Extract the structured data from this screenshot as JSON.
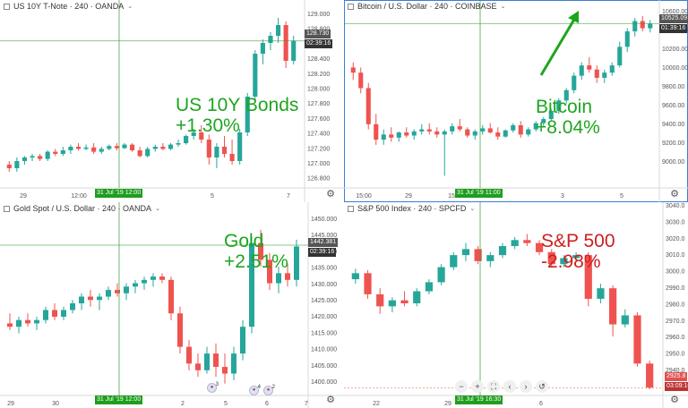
{
  "colors": {
    "up": "#26a69a",
    "down": "#ef5350",
    "green_label": "#1ea51e",
    "red_label": "#cc1f1f",
    "crosshair": "#2f9e2f",
    "active_border": "#3a7fd5"
  },
  "panes": [
    {
      "header": "US 10Y T-Note · 240 · OANDA",
      "big_label": [
        "US 10Y Bonds",
        "+1.30%"
      ],
      "label_color": "green",
      "price_ticks": [
        "129.000",
        "128.800",
        "128.600",
        "128.400",
        "128.200",
        "128.000",
        "127.800",
        "127.600",
        "127.400",
        "127.200",
        "127.000",
        "126.800"
      ],
      "time_ticks": [
        "29",
        "12:00",
        "5",
        "7"
      ],
      "price_tag": "128.730",
      "time_tag": "02:39:16",
      "crosshair_label": "31 Jul '19   12:00"
    },
    {
      "header": "Bitcoin / U.S. Dollar · 240 · COINBASE",
      "big_label": [
        "Bitcoin",
        "+8.04%"
      ],
      "label_color": "green",
      "price_ticks": [
        "10600.00",
        "10400.00",
        "10200.00",
        "10000.00",
        "9800.00",
        "9600.00",
        "9400.00",
        "9200.00",
        "9000.00"
      ],
      "time_ticks": [
        "15:00",
        "29",
        "15",
        "3",
        "5"
      ],
      "price_tag": "10525.09",
      "time_tag": "01:39:16",
      "crosshair_label": "31 Jul '19   11:00"
    },
    {
      "header": "Gold Spot / U.S. Dollar · 240 · OANDA",
      "big_label": [
        "Gold",
        "+2.51%"
      ],
      "label_color": "green",
      "price_ticks": [
        "1450.000",
        "1445.000",
        "1440.000",
        "1435.000",
        "1430.000",
        "1425.000",
        "1420.000",
        "1415.000",
        "1410.000",
        "1405.000",
        "1400.000"
      ],
      "time_ticks": [
        "29",
        "30",
        "2",
        "5",
        "6",
        "7"
      ],
      "price_tag": "1442.381",
      "time_tag": "02:39:16",
      "crosshair_label": "31 Jul '19   12:00",
      "event_flags": [
        "3",
        "4",
        "2"
      ]
    },
    {
      "header": "S&P 500 Index · 240 · SPCFD",
      "big_label": [
        "S&P 500",
        "-2.98%"
      ],
      "label_color": "red",
      "price_ticks": [
        "3040.0",
        "3030.0",
        "3020.0",
        "3010.0",
        "3000.0",
        "2990.0",
        "2980.0",
        "2970.0",
        "2960.0",
        "2950.0",
        "2940.0",
        "2930.0"
      ],
      "time_ticks": [
        "22",
        "29",
        "6"
      ],
      "price_tag": "2925.8",
      "time_tag": "03:09:16",
      "crosshair_label": "31 Jul '19   16:30"
    }
  ],
  "toolbar": [
    "−",
    "+",
    "⛶",
    "‹",
    "›",
    "↺"
  ],
  "chart_data": [
    {
      "type": "candlestick",
      "title": "US 10Y T-Note, 240, OANDA",
      "ylim": [
        126.7,
        129.15
      ],
      "current_price": 128.73,
      "candles": [
        [
          127.0,
          127.05,
          126.9,
          126.95
        ],
        [
          126.95,
          127.1,
          126.9,
          127.05
        ],
        [
          127.05,
          127.12,
          127.0,
          127.1
        ],
        [
          127.1,
          127.15,
          127.05,
          127.12
        ],
        [
          127.12,
          127.15,
          127.05,
          127.08
        ],
        [
          127.08,
          127.2,
          127.05,
          127.18
        ],
        [
          127.18,
          127.22,
          127.12,
          127.15
        ],
        [
          127.15,
          127.25,
          127.12,
          127.2
        ],
        [
          127.2,
          127.28,
          127.15,
          127.25
        ],
        [
          127.25,
          127.3,
          127.2,
          127.22
        ],
        [
          127.22,
          127.28,
          127.2,
          127.24
        ],
        [
          127.24,
          127.3,
          127.15,
          127.18
        ],
        [
          127.18,
          127.25,
          127.15,
          127.22
        ],
        [
          127.22,
          127.28,
          127.2,
          127.26
        ],
        [
          127.26,
          127.3,
          127.2,
          127.23
        ],
        [
          127.23,
          127.3,
          127.22,
          127.28
        ],
        [
          127.28,
          127.3,
          127.18,
          127.2
        ],
        [
          127.2,
          127.25,
          127.1,
          127.12
        ],
        [
          127.12,
          127.25,
          127.1,
          127.22
        ],
        [
          127.22,
          127.28,
          127.18,
          127.25
        ],
        [
          127.25,
          127.3,
          127.2,
          127.22
        ],
        [
          127.22,
          127.3,
          127.2,
          127.28
        ],
        [
          127.28,
          127.35,
          127.25,
          127.3
        ],
        [
          127.3,
          127.42,
          127.28,
          127.4
        ],
        [
          127.4,
          127.5,
          127.35,
          127.45
        ],
        [
          127.45,
          127.55,
          127.3,
          127.35
        ],
        [
          127.35,
          127.42,
          127.0,
          127.1
        ],
        [
          127.1,
          127.3,
          126.95,
          127.25
        ],
        [
          127.25,
          127.4,
          127.1,
          127.15
        ],
        [
          127.15,
          127.35,
          127.0,
          127.05
        ],
        [
          127.05,
          127.5,
          127.0,
          127.45
        ],
        [
          127.45,
          128.0,
          127.4,
          127.95
        ],
        [
          127.95,
          128.6,
          127.9,
          128.55
        ],
        [
          128.55,
          128.75,
          128.4,
          128.7
        ],
        [
          128.7,
          128.85,
          128.6,
          128.8
        ],
        [
          128.8,
          129.05,
          128.7,
          128.95
        ],
        [
          128.95,
          129.0,
          128.35,
          128.45
        ],
        [
          128.45,
          128.8,
          128.4,
          128.73
        ]
      ]
    },
    {
      "type": "candlestick",
      "title": "Bitcoin / U.S. Dollar, 240, COINBASE",
      "ylim": [
        8950,
        10650
      ],
      "current_price": 10525.09,
      "candles": [
        [
          10100,
          10150,
          9980,
          10050
        ],
        [
          10050,
          10100,
          9850,
          9900
        ],
        [
          9900,
          9950,
          9500,
          9550
        ],
        [
          9550,
          9650,
          9350,
          9400
        ],
        [
          9400,
          9500,
          9350,
          9450
        ],
        [
          9450,
          9520,
          9380,
          9420
        ],
        [
          9420,
          9480,
          9380,
          9470
        ],
        [
          9470,
          9520,
          9420,
          9440
        ],
        [
          9440,
          9500,
          9400,
          9480
        ],
        [
          9480,
          9550,
          9450,
          9500
        ],
        [
          9500,
          9560,
          9450,
          9480
        ],
        [
          9480,
          9520,
          9420,
          9450
        ],
        [
          9450,
          9500,
          9050,
          9480
        ],
        [
          9480,
          9560,
          9450,
          9530
        ],
        [
          9530,
          9600,
          9480,
          9500
        ],
        [
          9500,
          9520,
          9420,
          9440
        ],
        [
          9440,
          9500,
          9400,
          9480
        ],
        [
          9480,
          9540,
          9450,
          9510
        ],
        [
          9510,
          9560,
          9460,
          9470
        ],
        [
          9470,
          9520,
          9400,
          9430
        ],
        [
          9430,
          9500,
          9420,
          9490
        ],
        [
          9490,
          9560,
          9470,
          9540
        ],
        [
          9540,
          9580,
          9420,
          9450
        ],
        [
          9450,
          9520,
          9430,
          9500
        ],
        [
          9500,
          9580,
          9480,
          9560
        ],
        [
          9560,
          9620,
          9520,
          9600
        ],
        [
          9600,
          9700,
          9580,
          9680
        ],
        [
          9680,
          9800,
          9650,
          9780
        ],
        [
          9780,
          9900,
          9750,
          9880
        ],
        [
          9880,
          10050,
          9850,
          10020
        ],
        [
          10020,
          10150,
          9980,
          10120
        ],
        [
          10120,
          10200,
          10050,
          10080
        ],
        [
          10080,
          10120,
          9950,
          10000
        ],
        [
          10000,
          10080,
          9950,
          10050
        ],
        [
          10050,
          10150,
          10020,
          10120
        ],
        [
          10120,
          10350,
          10100,
          10300
        ],
        [
          10300,
          10480,
          10250,
          10450
        ],
        [
          10450,
          10580,
          10400,
          10550
        ],
        [
          10550,
          10600,
          10450,
          10480
        ],
        [
          10480,
          10560,
          10440,
          10525
        ]
      ]
    },
    {
      "type": "candlestick",
      "title": "Gold Spot / U.S. Dollar, 240, OANDA",
      "ylim": [
        1398,
        1452
      ],
      "current_price": 1442.381,
      "candles": [
        [
          1419,
          1422,
          1417,
          1418
        ],
        [
          1418,
          1421,
          1416,
          1420
        ],
        [
          1420,
          1422,
          1418,
          1419
        ],
        [
          1419,
          1421,
          1417,
          1420
        ],
        [
          1420,
          1424,
          1419,
          1423
        ],
        [
          1423,
          1425,
          1420,
          1421
        ],
        [
          1421,
          1424,
          1420,
          1423
        ],
        [
          1423,
          1426,
          1422,
          1425
        ],
        [
          1425,
          1428,
          1423,
          1427
        ],
        [
          1427,
          1429,
          1424,
          1426
        ],
        [
          1426,
          1428,
          1423,
          1427
        ],
        [
          1427,
          1430,
          1426,
          1429
        ],
        [
          1429,
          1431,
          1427,
          1428
        ],
        [
          1428,
          1431,
          1426,
          1430
        ],
        [
          1430,
          1432,
          1428,
          1431
        ],
        [
          1431,
          1433,
          1429,
          1432
        ],
        [
          1432,
          1434,
          1430,
          1433
        ],
        [
          1433,
          1434,
          1431,
          1432
        ],
        [
          1432,
          1433,
          1420,
          1422
        ],
        [
          1422,
          1424,
          1410,
          1412
        ],
        [
          1412,
          1414,
          1405,
          1407
        ],
        [
          1407,
          1410,
          1403,
          1405
        ],
        [
          1405,
          1412,
          1404,
          1410
        ],
        [
          1410,
          1413,
          1403,
          1406
        ],
        [
          1406,
          1410,
          1401,
          1404
        ],
        [
          1404,
          1412,
          1402,
          1410
        ],
        [
          1410,
          1420,
          1408,
          1418
        ],
        [
          1418,
          1445,
          1416,
          1443
        ],
        [
          1443,
          1447,
          1436,
          1438
        ],
        [
          1438,
          1440,
          1429,
          1431
        ],
        [
          1431,
          1436,
          1428,
          1434
        ],
        [
          1434,
          1437,
          1430,
          1432
        ],
        [
          1432,
          1444,
          1430,
          1442
        ]
      ]
    },
    {
      "type": "candlestick",
      "title": "S&P 500 Index, 240, SPCFD",
      "ylim": [
        2922,
        3042
      ],
      "current_price": 2925.8,
      "candles": [
        [
          2998,
          3005,
          2995,
          3002
        ],
        [
          3002,
          3004,
          2985,
          2988
        ],
        [
          2988,
          2992,
          2975,
          2980
        ],
        [
          2980,
          2986,
          2976,
          2984
        ],
        [
          2984,
          2990,
          2980,
          2982
        ],
        [
          2982,
          2992,
          2980,
          2990
        ],
        [
          2990,
          2998,
          2988,
          2996
        ],
        [
          2996,
          3008,
          2994,
          3006
        ],
        [
          3006,
          3016,
          3004,
          3014
        ],
        [
          3014,
          3022,
          3010,
          3018
        ],
        [
          3018,
          3020,
          3008,
          3010
        ],
        [
          3010,
          3016,
          3006,
          3014
        ],
        [
          3014,
          3022,
          3012,
          3020
        ],
        [
          3020,
          3026,
          3018,
          3024
        ],
        [
          3024,
          3028,
          3020,
          3022
        ],
        [
          3022,
          3024,
          3014,
          3016
        ],
        [
          3016,
          3018,
          3006,
          3008
        ],
        [
          3008,
          3014,
          3006,
          3012
        ],
        [
          3012,
          3016,
          3010,
          3014
        ],
        [
          3014,
          3016,
          2980,
          2985
        ],
        [
          2985,
          2995,
          2982,
          2992
        ],
        [
          2992,
          2994,
          2960,
          2968
        ],
        [
          2968,
          2978,
          2966,
          2974
        ],
        [
          2974,
          2976,
          2940,
          2942
        ],
        [
          2942,
          2944,
          2925,
          2926
        ]
      ]
    }
  ]
}
